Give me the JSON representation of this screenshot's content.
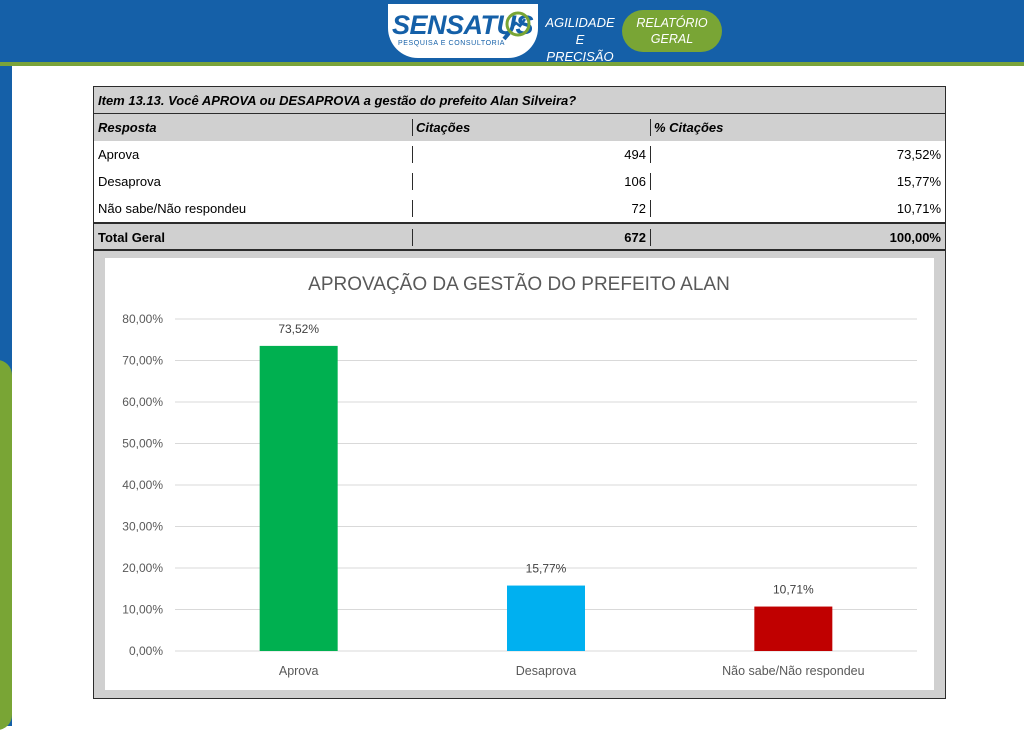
{
  "header": {
    "logo": "SENSATUS",
    "logo_sub": "PESQUISA E CONSULTORIA",
    "tagline_line1": "AGILIDADE E",
    "tagline_line2": "PRECISÃO",
    "badge_line1": "RELATÓRIO",
    "badge_line2": "GERAL",
    "brand_color": "#1560a8",
    "accent_color": "#79a535"
  },
  "table": {
    "title": "Item 13.13. Você APROVA ou DESAPROVA a gestão do prefeito Alan Silveira?",
    "columns": [
      "Resposta",
      "Citações",
      "% Citações"
    ],
    "rows": [
      {
        "resposta": "Aprova",
        "citacoes": "494",
        "pct": "73,52%"
      },
      {
        "resposta": "Desaprova",
        "citacoes": "106",
        "pct": "15,77%"
      },
      {
        "resposta": "Não sabe/Não respondeu",
        "citacoes": "72",
        "pct": "10,71%"
      }
    ],
    "total": {
      "resposta": "Total Geral",
      "citacoes": "672",
      "pct": "100,00%"
    }
  },
  "chart_data": {
    "type": "bar",
    "title": "APROVAÇÃO DA GESTÃO DO PREFEITO ALAN",
    "categories": [
      "Aprova",
      "Desaprova",
      "Não sabe/Não respondeu"
    ],
    "values": [
      73.52,
      15.77,
      10.71
    ],
    "value_labels": [
      "73,52%",
      "15,77%",
      "10,71%"
    ],
    "colors": [
      "#00b050",
      "#00b0f0",
      "#c00000"
    ],
    "ylim": [
      0,
      80
    ],
    "yticks": [
      0,
      10,
      20,
      30,
      40,
      50,
      60,
      70,
      80
    ],
    "ytick_labels": [
      "0,00%",
      "10,00%",
      "20,00%",
      "30,00%",
      "40,00%",
      "50,00%",
      "60,00%",
      "70,00%",
      "80,00%"
    ],
    "xlabel": "",
    "ylabel": "",
    "grid": true,
    "legend": "none"
  }
}
